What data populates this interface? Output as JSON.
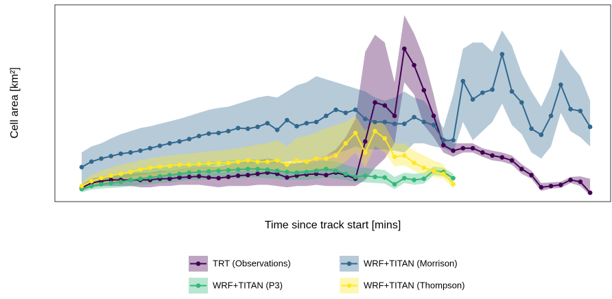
{
  "chart_data": {
    "type": "line",
    "x_label": "Time since track start [mins]",
    "y_label": "Cell area [km²]",
    "xlim": [
      -13.7,
      270.5
    ],
    "ylim": [
      4.5,
      327
    ],
    "xticks": [
      0,
      100,
      200
    ],
    "yticks": [
      100,
      200,
      300
    ],
    "x_minor_ticks": [
      50,
      150,
      250
    ],
    "y_minor_ticks": [
      50,
      150,
      250
    ],
    "grid": true,
    "legend_position": "bottom",
    "x": [
      0,
      5,
      10,
      15,
      20,
      25,
      30,
      35,
      40,
      45,
      50,
      55,
      60,
      65,
      70,
      75,
      80,
      85,
      90,
      95,
      100,
      105,
      110,
      115,
      120,
      125,
      130,
      135,
      140,
      145,
      150,
      155,
      160,
      165,
      170,
      175,
      180,
      185,
      190,
      195,
      200,
      205,
      210,
      215,
      220,
      225,
      230,
      235,
      240,
      245,
      250,
      255,
      260
    ],
    "series": [
      {
        "name": "TRT (Observations)",
        "color": "#440154",
        "values": [
          27,
          35,
          38,
          40,
          40,
          40,
          40,
          40,
          42,
          42,
          44,
          45,
          46,
          44,
          43,
          45,
          47,
          48,
          50,
          52,
          50,
          44,
          47,
          49,
          50,
          48,
          52,
          48,
          42,
          103,
          167,
          162,
          145,
          255,
          228,
          187,
          145,
          97,
          88,
          92,
          92,
          85,
          80,
          77,
          72,
          58,
          48,
          28,
          30,
          32,
          40,
          37,
          19
        ],
        "upper": [
          32,
          42,
          45,
          48,
          48,
          50,
          52,
          52,
          55,
          55,
          58,
          60,
          62,
          62,
          62,
          65,
          68,
          70,
          72,
          75,
          72,
          65,
          68,
          70,
          75,
          80,
          90,
          110,
          140,
          250,
          278,
          265,
          200,
          310,
          280,
          240,
          180,
          110,
          100,
          100,
          100,
          92,
          88,
          85,
          80,
          66,
          55,
          35,
          36,
          37,
          45,
          46,
          42
        ],
        "lower": [
          22,
          28,
          30,
          30,
          30,
          30,
          28,
          28,
          30,
          30,
          32,
          32,
          32,
          30,
          28,
          30,
          30,
          30,
          32,
          32,
          30,
          28,
          30,
          30,
          32,
          30,
          30,
          30,
          30,
          40,
          60,
          75,
          100,
          200,
          180,
          130,
          110,
          85,
          78,
          85,
          85,
          78,
          72,
          70,
          65,
          50,
          42,
          22,
          26,
          27,
          35,
          30,
          15
        ]
      },
      {
        "name": "WRF+TITAN (Morrison)",
        "color": "#31688e",
        "values": [
          61,
          70,
          75,
          79,
          83,
          85,
          88,
          92,
          96,
          100,
          103,
          107,
          112,
          116,
          117,
          120,
          125,
          124,
          127,
          133,
          122,
          138,
          128,
          133,
          135,
          145,
          155,
          150,
          155,
          140,
          135,
          135,
          132,
          132,
          143,
          135,
          130,
          105,
          105,
          202,
          172,
          183,
          188,
          246,
          185,
          167,
          124,
          114,
          145,
          196,
          156,
          153,
          127
        ],
        "upper": [
          85,
          95,
          100,
          108,
          115,
          120,
          125,
          128,
          132,
          136,
          140,
          145,
          150,
          155,
          158,
          160,
          165,
          170,
          175,
          178,
          175,
          185,
          195,
          200,
          210,
          205,
          200,
          195,
          190,
          185,
          175,
          170,
          175,
          185,
          175,
          170,
          150,
          125,
          180,
          255,
          265,
          265,
          250,
          285,
          260,
          215,
          185,
          160,
          195,
          255,
          230,
          210,
          170
        ],
        "lower": [
          30,
          35,
          38,
          40,
          42,
          45,
          48,
          50,
          52,
          55,
          58,
          60,
          62,
          62,
          65,
          65,
          68,
          68,
          70,
          70,
          68,
          70,
          72,
          72,
          75,
          80,
          85,
          88,
          95,
          90,
          90,
          90,
          88,
          85,
          100,
          100,
          95,
          92,
          85,
          135,
          105,
          120,
          135,
          165,
          130,
          115,
          85,
          75,
          95,
          150,
          120,
          110,
          95
        ]
      },
      {
        "name": "WRF+TITAN (P3)",
        "color": "#35b779",
        "values": [
          25,
          30,
          33,
          35,
          37,
          40,
          42,
          44,
          46,
          48,
          50,
          52,
          53,
          54,
          55,
          56,
          57,
          58,
          58,
          57,
          55,
          53,
          52,
          53,
          55,
          58,
          55,
          50,
          45,
          47,
          45,
          44,
          33,
          43,
          40,
          42,
          55,
          53,
          43,
          null,
          null,
          null,
          null,
          null,
          null,
          null,
          null,
          null,
          null,
          null,
          null,
          null,
          null
        ],
        "upper": [
          30,
          38,
          42,
          45,
          48,
          52,
          55,
          58,
          60,
          62,
          65,
          67,
          68,
          70,
          70,
          72,
          72,
          73,
          74,
          73,
          70,
          68,
          67,
          68,
          70,
          72,
          70,
          65,
          60,
          60,
          58,
          56,
          45,
          52,
          50,
          52,
          62,
          60,
          50,
          null,
          null,
          null,
          null,
          null,
          null,
          null,
          null,
          null,
          null,
          null,
          null,
          null,
          null
        ],
        "lower": [
          20,
          24,
          26,
          27,
          28,
          30,
          32,
          33,
          35,
          36,
          38,
          40,
          40,
          41,
          42,
          42,
          43,
          44,
          44,
          43,
          42,
          40,
          40,
          40,
          42,
          44,
          42,
          40,
          36,
          36,
          35,
          34,
          25,
          35,
          32,
          34,
          48,
          46,
          36,
          null,
          null,
          null,
          null,
          null,
          null,
          null,
          null,
          null,
          null,
          null,
          null,
          null,
          null
        ]
      },
      {
        "name": "WRF+TITAN (Thompson)",
        "color": "#fde725",
        "values": [
          30,
          38,
          43,
          47,
          50,
          53,
          57,
          60,
          62,
          63,
          65,
          65,
          66,
          67,
          68,
          68,
          70,
          72,
          70,
          70,
          72,
          65,
          72,
          70,
          75,
          75,
          80,
          100,
          117,
          85,
          120,
          108,
          78,
          80,
          68,
          60,
          55,
          50,
          33,
          null,
          null,
          null,
          null,
          null,
          null,
          null,
          null,
          null,
          null,
          null,
          null,
          null,
          null
        ],
        "upper": [
          38,
          48,
          55,
          60,
          65,
          68,
          72,
          75,
          78,
          80,
          82,
          83,
          85,
          87,
          88,
          90,
          92,
          95,
          98,
          100,
          105,
          95,
          110,
          112,
          118,
          125,
          130,
          135,
          145,
          120,
          140,
          130,
          100,
          100,
          88,
          80,
          72,
          65,
          42,
          null,
          null,
          null,
          null,
          null,
          null,
          null,
          null,
          null,
          null,
          null,
          null,
          null,
          null
        ],
        "lower": [
          24,
          30,
          34,
          36,
          38,
          40,
          43,
          45,
          47,
          48,
          50,
          50,
          50,
          52,
          52,
          53,
          54,
          55,
          55,
          55,
          56,
          50,
          55,
          55,
          58,
          58,
          60,
          70,
          85,
          60,
          95,
          85,
          62,
          64,
          55,
          48,
          45,
          42,
          26,
          null,
          null,
          null,
          null,
          null,
          null,
          null,
          null,
          null,
          null,
          null,
          null,
          null,
          null
        ]
      }
    ]
  }
}
